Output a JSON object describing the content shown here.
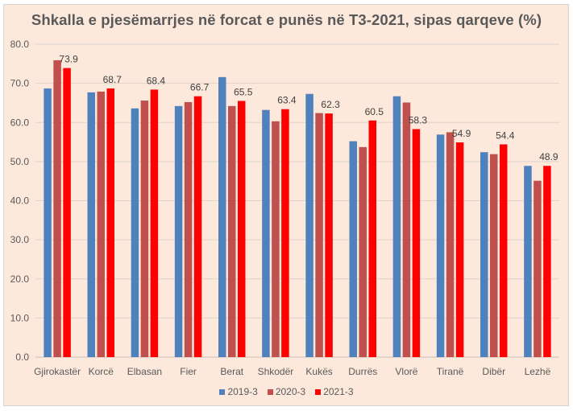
{
  "chart_data": {
    "type": "bar",
    "title": "Shkalla e pjesëmarrjes në forcat e punës në T3-2021, sipas qarqeve (%)",
    "xlabel": "",
    "ylabel": "",
    "ylim": [
      0,
      80
    ],
    "yticks": [
      "0.0",
      "10.0",
      "20.0",
      "30.0",
      "40.0",
      "50.0",
      "60.0",
      "70.0",
      "80.0"
    ],
    "ytick_values": [
      0,
      10,
      20,
      30,
      40,
      50,
      60,
      70,
      80
    ],
    "grid": true,
    "legend_position": "bottom",
    "categories": [
      "Gjirokastër",
      "Korcë",
      "Elbasan",
      "Fier",
      "Berat",
      "Shkodër",
      "Kukës",
      "Durrës",
      "Vlorë",
      "Tiranë",
      "Dibër",
      "Lezhë"
    ],
    "series": [
      {
        "name": "2019-3",
        "color": "#4F81BD",
        "values": [
          68.7,
          67.7,
          63.6,
          64.2,
          71.6,
          63.2,
          67.3,
          55.2,
          66.7,
          56.9,
          52.4,
          48.9
        ]
      },
      {
        "name": "2020-3",
        "color": "#C0504D",
        "values": [
          75.9,
          67.9,
          65.6,
          65.2,
          64.2,
          60.3,
          62.4,
          53.7,
          65.1,
          57.5,
          51.9,
          45.1
        ]
      },
      {
        "name": "2021-3",
        "color": "#FF0000",
        "values": [
          73.9,
          68.7,
          68.4,
          66.7,
          65.5,
          63.4,
          62.3,
          60.5,
          58.3,
          54.9,
          54.4,
          48.9
        ],
        "data_labels": [
          "73.9",
          "68.7",
          "68.4",
          "66.7",
          "65.5",
          "63.4",
          "62.3",
          "60.5",
          "58.3",
          "54.9",
          "54.4",
          "48.9"
        ]
      }
    ]
  }
}
